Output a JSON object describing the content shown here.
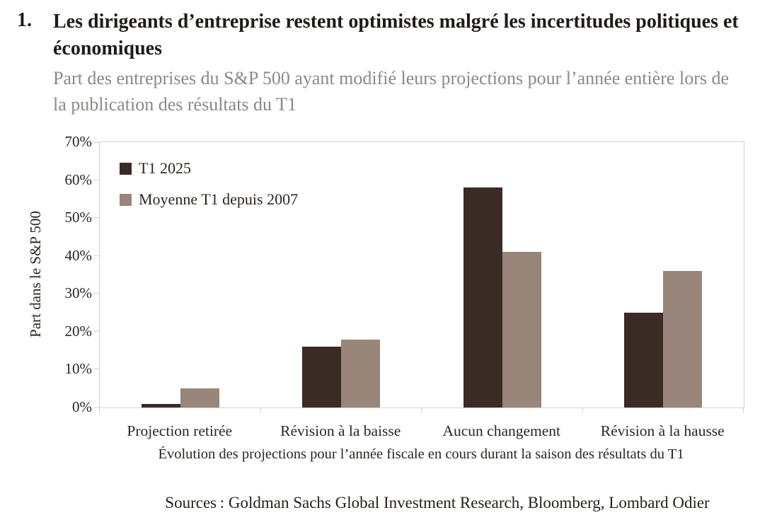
{
  "figure_number": "1.",
  "title": "Les dirigeants d’entreprise restent optimistes malgré les incertitudes politiques et économiques",
  "subtitle": "Part des entreprises du S&P 500 ayant modifié leurs projections pour l’année entière lors de la publication des résultats du T1",
  "source_line": "Sources : Goldman Sachs Global Investment Research, Bloomberg, Lombard Odier",
  "colors": {
    "series1": "#3a2b25",
    "series2": "#98867a",
    "axis_line": "#d6d2cc",
    "title_text": "#211a16",
    "subtitle_text": "#8c8985",
    "tick_text": "#2d241f"
  },
  "chart_data": {
    "type": "bar",
    "categories": [
      "Projection retirée",
      "Révision à la baisse",
      "Aucun changement",
      "Révision à la hausse"
    ],
    "series": [
      {
        "name": "T1 2025",
        "color": "#3a2b25",
        "values": [
          1,
          16,
          58,
          25
        ]
      },
      {
        "name": "Moyenne T1 depuis 2007",
        "color": "#98867a",
        "values": [
          5,
          18,
          41,
          36
        ]
      }
    ],
    "title": "",
    "xlabel": "Évolution des projections pour l’année fiscale en cours durant la saison des résultats du T1",
    "ylabel": "Part dans le S&P 500",
    "ylim": [
      0,
      70
    ],
    "ytick_step": 10,
    "ytick_labels": [
      "0%",
      "10%",
      "20%",
      "30%",
      "40%",
      "50%",
      "60%",
      "70%"
    ],
    "grid": false,
    "legend_position": "top-left-inside"
  }
}
